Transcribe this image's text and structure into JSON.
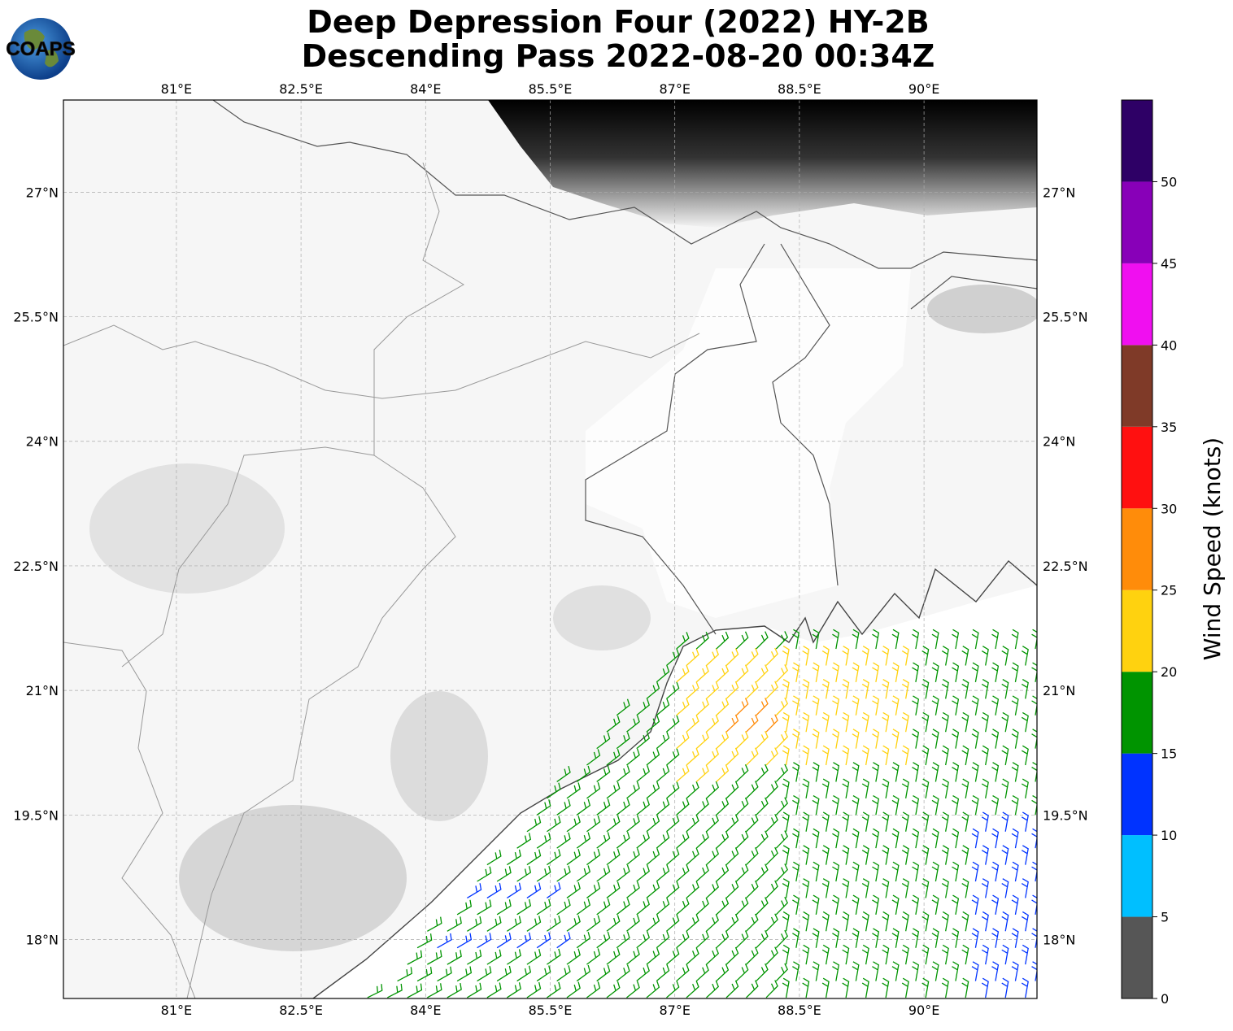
{
  "map": {
    "title": [
      "Deep Depression Four (2022) HY-2B",
      "Descending Pass 2022-08-20 00:34Z"
    ],
    "logo": "COAPS",
    "xlim": [
      79.64,
      91.36
    ],
    "ylim": [
      17.29,
      28.11
    ],
    "xticks": [
      {
        "value": 81,
        "label": "81°E"
      },
      {
        "value": 82.5,
        "label": "82.5°E"
      },
      {
        "value": 84,
        "label": "84°E"
      },
      {
        "value": 85.5,
        "label": "85.5°E"
      },
      {
        "value": 87,
        "label": "87°E"
      },
      {
        "value": 88.5,
        "label": "88.5°E"
      },
      {
        "value": 90,
        "label": "90°E"
      }
    ],
    "yticks": [
      {
        "value": 18,
        "label": "18°N"
      },
      {
        "value": 19.5,
        "label": "19.5°N"
      },
      {
        "value": 21,
        "label": "21°N"
      },
      {
        "value": 22.5,
        "label": "22.5°N"
      },
      {
        "value": 24,
        "label": "24°N"
      },
      {
        "value": 25.5,
        "label": "25.5°N"
      },
      {
        "value": 27,
        "label": "27°N"
      }
    ],
    "grid": true,
    "colorbar": {
      "label": "Wind Speed (knots)",
      "bounds": [
        0,
        5,
        10,
        15,
        20,
        25,
        30,
        35,
        40,
        45,
        50,
        55
      ],
      "colors": [
        "#565656",
        "#00bfff",
        "#0033ff",
        "#009400",
        "#ffd20f",
        "#ff8c0a",
        "#ff1010",
        "#7f3a28",
        "#f00ff0",
        "#8800b8",
        "#2e0066"
      ],
      "ticks": [
        0,
        5,
        10,
        15,
        20,
        25,
        30,
        35,
        40,
        45,
        50
      ]
    }
  }
}
